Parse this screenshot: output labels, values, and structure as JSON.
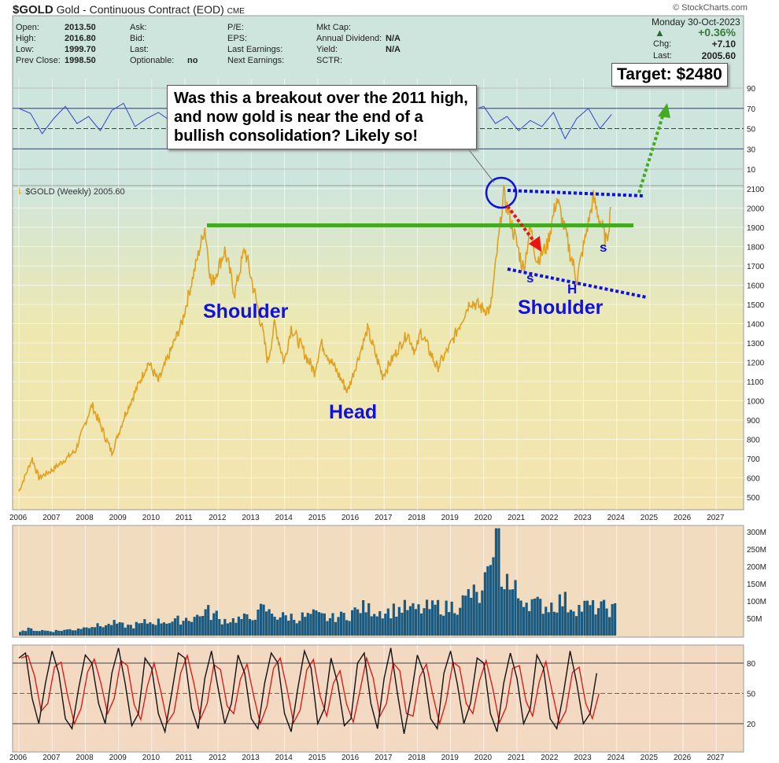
{
  "header": {
    "symbol": "$GOLD",
    "name": "Gold - Continuous Contract (EOD)",
    "exchange": "CME",
    "watermark": "© StockCharts.com",
    "fields": [
      [
        "Open:",
        "2013.50"
      ],
      [
        "High:",
        "2016.80"
      ],
      [
        "Low:",
        "1999.70"
      ],
      [
        "Prev Close:",
        "1998.50"
      ]
    ],
    "col2": [
      [
        "Ask:",
        ""
      ],
      [
        "Bid:",
        ""
      ],
      [
        "Last:",
        ""
      ],
      [
        "Optionable:",
        "no"
      ]
    ],
    "col3": [
      "P/E:",
      "EPS:",
      "Last Earnings:",
      "Next Earnings:"
    ],
    "col4": [
      [
        "Mkt Cap:",
        ""
      ],
      [
        "Annual Dividend:",
        "N/A"
      ],
      [
        "Yield:",
        "N/A"
      ],
      [
        "SCTR:",
        ""
      ]
    ],
    "date": "Monday  30-Oct-2023",
    "pct": "+0.36%",
    "chg_label": "Chg:",
    "chg": "+7.10",
    "last_label": "Last:",
    "last": "2005.60"
  },
  "annotations": {
    "callout": "Was this a breakout over the 2011 high, and now gold is near the end of a bullish consolidation?  Likely so!",
    "target": "Target: $2480",
    "shoulder_left": "Shoulder",
    "head": "Head",
    "shoulder_right": "Shoulder",
    "s1": "s",
    "h": "H",
    "s2": "s"
  },
  "colors": {
    "panel": "#cde5dd",
    "price": "#e0a020",
    "volume": "#1a5a80",
    "green": "#44aa22",
    "blue": "#1010e0",
    "red": "#ee1111"
  },
  "chart_data": {
    "type": "line",
    "legend": "$GOLD (Weekly) 2005.60",
    "x_ticks": [
      "2006",
      "2007",
      "2008",
      "2009",
      "2010",
      "2011",
      "2012",
      "2013",
      "2014",
      "2015",
      "2016",
      "2017",
      "2018",
      "2019",
      "2020",
      "2021",
      "2022",
      "2023",
      "2024",
      "2025",
      "2026",
      "2027"
    ],
    "price": {
      "ylim": [
        400,
        2200
      ],
      "y_ticks": [
        "500",
        "600",
        "700",
        "800",
        "900",
        "1000",
        "1100",
        "1200",
        "1300",
        "1400",
        "1500",
        "1600",
        "1700",
        "1800",
        "1900",
        "2000",
        "2100"
      ],
      "x": [
        2006.0,
        2006.4,
        2006.6,
        2007.0,
        2007.7,
        2008.2,
        2008.8,
        2009.2,
        2009.9,
        2010.2,
        2010.9,
        2011.6,
        2011.8,
        2012.2,
        2012.5,
        2012.8,
        2013.3,
        2013.5,
        2013.7,
        2013.99,
        2014.2,
        2014.9,
        2015.1,
        2015.9,
        2016.5,
        2016.95,
        2017.7,
        2017.95,
        2018.1,
        2018.6,
        2019.0,
        2019.6,
        2019.95,
        2020.2,
        2020.6,
        2021.2,
        2021.4,
        2021.6,
        2021.9,
        2022.2,
        2022.8,
        2023.3,
        2023.7,
        2023.83
      ],
      "y": [
        530,
        700,
        600,
        640,
        740,
        980,
        730,
        930,
        1200,
        1100,
        1400,
        1900,
        1600,
        1780,
        1560,
        1790,
        1400,
        1200,
        1400,
        1200,
        1380,
        1150,
        1300,
        1050,
        1370,
        1130,
        1350,
        1250,
        1360,
        1170,
        1290,
        1520,
        1480,
        1470,
        2070,
        1680,
        1900,
        1730,
        1800,
        2050,
        1630,
        2050,
        1820,
        2005.6
      ]
    },
    "rsi": {
      "levels": [
        "90",
        "70",
        "50",
        "30",
        "10"
      ],
      "start": 2006.0,
      "step": 0.35,
      "values": [
        70,
        65,
        45,
        60,
        72,
        55,
        62,
        48,
        68,
        75,
        52,
        60,
        66,
        58,
        70,
        72,
        55,
        40,
        60,
        35,
        55,
        48,
        62,
        50,
        45,
        58,
        52,
        66,
        48,
        60,
        55,
        42,
        62,
        50,
        58,
        65,
        60,
        48,
        66,
        68,
        72,
        55,
        62,
        48,
        58,
        52,
        66,
        40,
        60,
        70,
        50,
        64
      ]
    },
    "volume": {
      "ticks": [
        "300M",
        "250M",
        "200M",
        "150M",
        "100M",
        "50M"
      ],
      "start": 2006.0,
      "step": 0.25,
      "values": [
        15,
        18,
        15,
        14,
        14,
        16,
        18,
        22,
        30,
        28,
        30,
        35,
        30,
        28,
        32,
        38,
        40,
        42,
        40,
        45,
        50,
        55,
        70,
        60,
        45,
        45,
        48,
        50,
        60,
        75,
        65,
        55,
        55,
        50,
        55,
        60,
        55,
        50,
        55,
        60,
        70,
        80,
        75,
        70,
        70,
        75,
        80,
        75,
        75,
        80,
        85,
        80,
        85,
        100,
        120,
        110,
        160,
        300,
        170,
        130,
        110,
        100,
        90,
        85,
        90,
        100,
        85,
        80,
        85,
        80,
        80,
        75
      ]
    },
    "stochastic": {
      "levels": [
        "80",
        "50",
        "20"
      ],
      "start": 2006.0,
      "step": 0.2,
      "values": [
        85,
        90,
        45,
        20,
        60,
        92,
        70,
        25,
        15,
        55,
        88,
        80,
        40,
        20,
        70,
        95,
        60,
        18,
        30,
        85,
        75,
        30,
        12,
        50,
        90,
        85,
        35,
        15,
        65,
        92,
        55,
        20,
        40,
        88,
        70,
        25,
        15,
        60,
        90,
        80,
        30,
        12,
        55,
        92,
        75,
        20,
        35,
        85,
        60,
        18,
        25,
        80,
        90,
        40,
        15,
        65,
        95,
        50,
        10,
        45,
        88,
        70,
        25,
        15,
        70,
        92,
        60,
        20,
        40,
        85,
        80,
        30,
        12,
        60,
        90,
        65,
        20,
        35,
        88,
        75,
        25,
        15,
        50,
        92,
        60,
        20,
        30,
        70
      ]
    }
  }
}
